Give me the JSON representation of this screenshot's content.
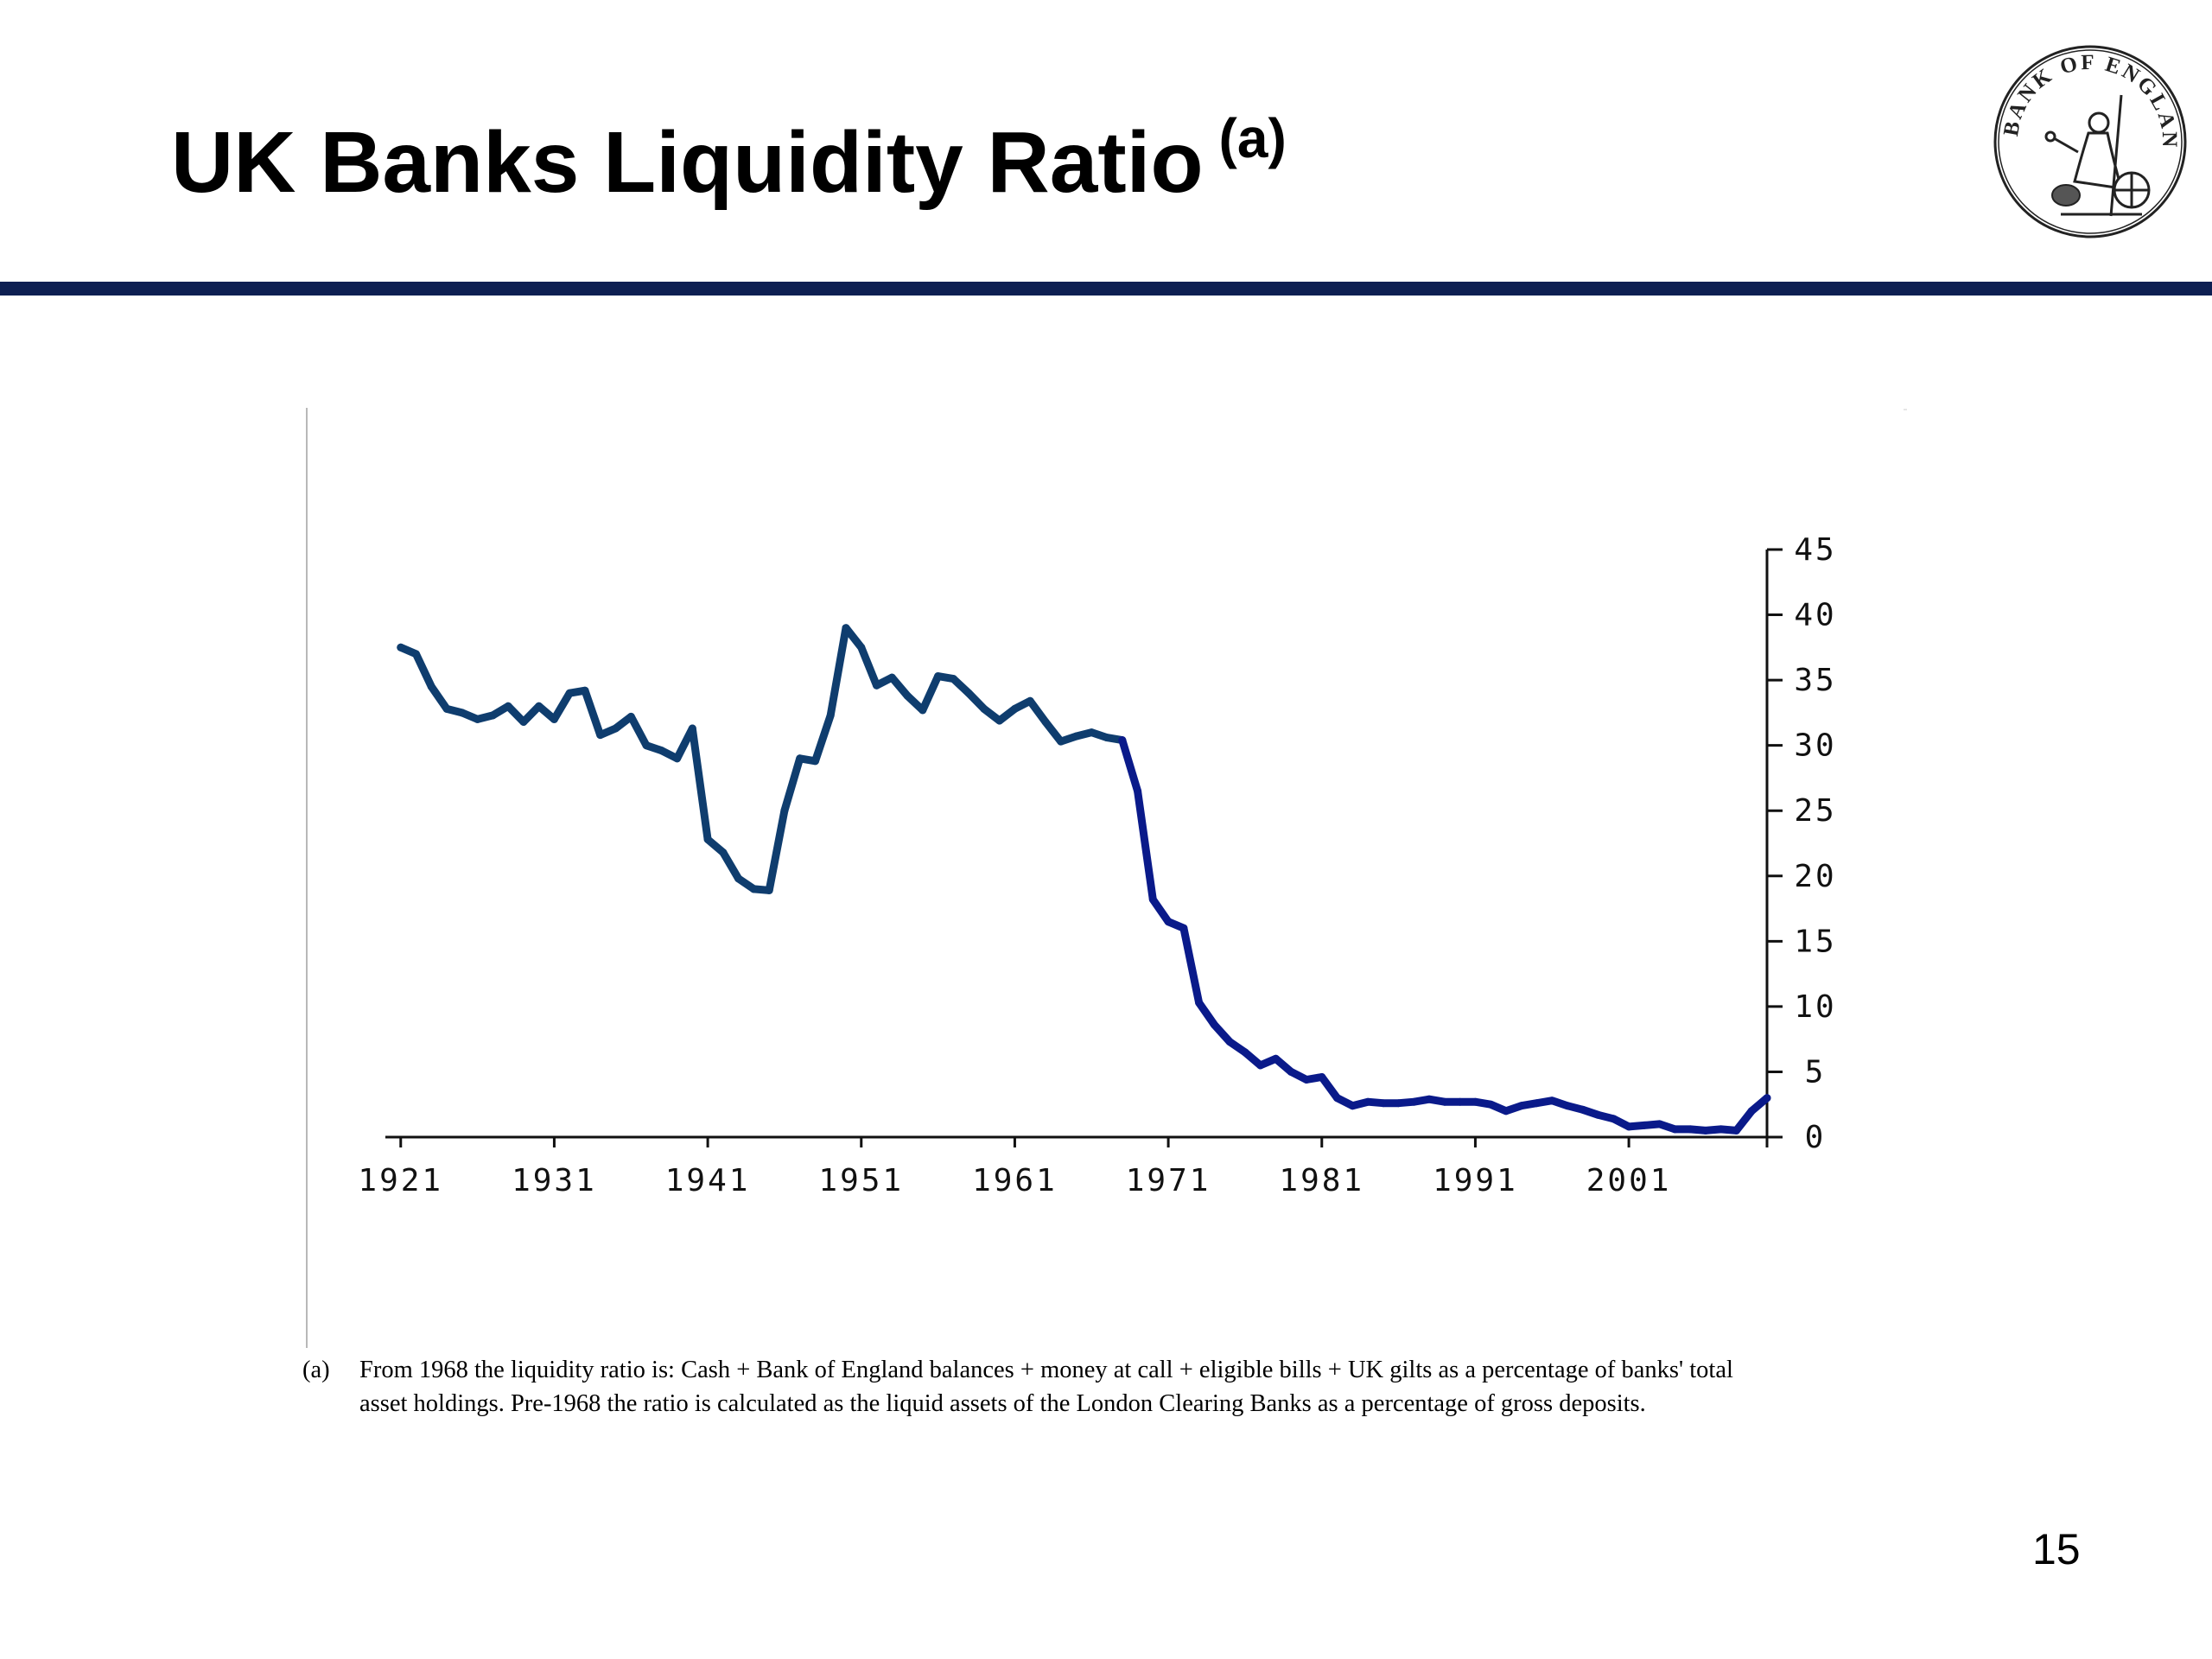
{
  "slide": {
    "title": "UK Banks Liquidity Ratio",
    "title_superscript": "(a)",
    "page_number": "15",
    "rule_color": "#0d1f52",
    "logo": {
      "icon": "bank-of-england-seal-icon",
      "text": "BANK OF ENGLAND"
    },
    "footnote": {
      "marker": "(a)",
      "text": "From 1968 the liquidity ratio is: Cash + Bank of England balances + money at call + eligible bills + UK gilts as a percentage of banks' total asset holdings. Pre-1968 the ratio is calculated as the liquid assets of the London Clearing Banks as a percentage of gross deposits."
    }
  },
  "chart_data": {
    "type": "line",
    "title": "",
    "xlabel": "",
    "ylabel": "",
    "xlim": [
      1920,
      2010
    ],
    "ylim": [
      0,
      45
    ],
    "x_tick_labels": [
      "1921",
      "1931",
      "1941",
      "1951",
      "1961",
      "1971",
      "1981",
      "1991",
      "2001"
    ],
    "y_tick_labels": [
      "0",
      "5",
      "10",
      "15",
      "20",
      "25",
      "30",
      "35",
      "40",
      "45"
    ],
    "y_axis_position": "right",
    "grid": false,
    "legend": "none",
    "series": [
      {
        "color_pre_1968": "#0f3d6e",
        "color_post_1968": "#0a1a8a",
        "break_year": 1968,
        "x": [
          1921,
          1922,
          1923,
          1924,
          1925,
          1926,
          1927,
          1928,
          1929,
          1930,
          1931,
          1932,
          1933,
          1934,
          1935,
          1936,
          1937,
          1938,
          1939,
          1940,
          1941,
          1942,
          1943,
          1944,
          1945,
          1946,
          1947,
          1948,
          1949,
          1950,
          1951,
          1952,
          1953,
          1954,
          1955,
          1956,
          1957,
          1958,
          1959,
          1960,
          1961,
          1962,
          1963,
          1964,
          1965,
          1966,
          1967,
          1968,
          1969,
          1970,
          1971,
          1972,
          1973,
          1974,
          1975,
          1976,
          1977,
          1978,
          1979,
          1980,
          1981,
          1982,
          1983,
          1984,
          1985,
          1986,
          1987,
          1988,
          1989,
          1990,
          1991,
          1992,
          1993,
          1994,
          1995,
          1996,
          1997,
          1998,
          1999,
          2000,
          2001,
          2002,
          2003,
          2004,
          2005,
          2006,
          2007,
          2008,
          2009,
          2010
        ],
        "y": [
          37.5,
          37,
          34.5,
          32.8,
          32.5,
          32,
          32.3,
          33,
          31.8,
          33,
          32,
          34,
          34.2,
          30.8,
          31.3,
          32.2,
          30,
          29.6,
          29,
          31.3,
          22.8,
          21.8,
          19.8,
          19,
          18.9,
          25,
          29,
          28.8,
          32.3,
          39,
          37.5,
          34.6,
          35.2,
          33.8,
          32.7,
          35.3,
          35.1,
          34,
          32.8,
          31.9,
          32.8,
          33.4,
          31.8,
          30.3,
          30.7,
          31,
          30.6,
          30.4,
          26.5,
          18.2,
          16.5,
          16,
          10.3,
          8.6,
          7.3,
          6.5,
          5.5,
          6,
          5,
          4.4,
          4.6,
          3,
          2.4,
          2.7,
          2.6,
          2.6,
          2.7,
          2.9,
          2.7,
          2.7,
          2.7,
          2.5,
          2,
          2.4,
          2.6,
          2.8,
          2.4,
          2.1,
          1.7,
          1.4,
          0.8,
          0.9,
          1,
          0.6,
          0.6,
          0.5,
          0.6,
          0.5,
          2,
          3
        ]
      }
    ]
  }
}
